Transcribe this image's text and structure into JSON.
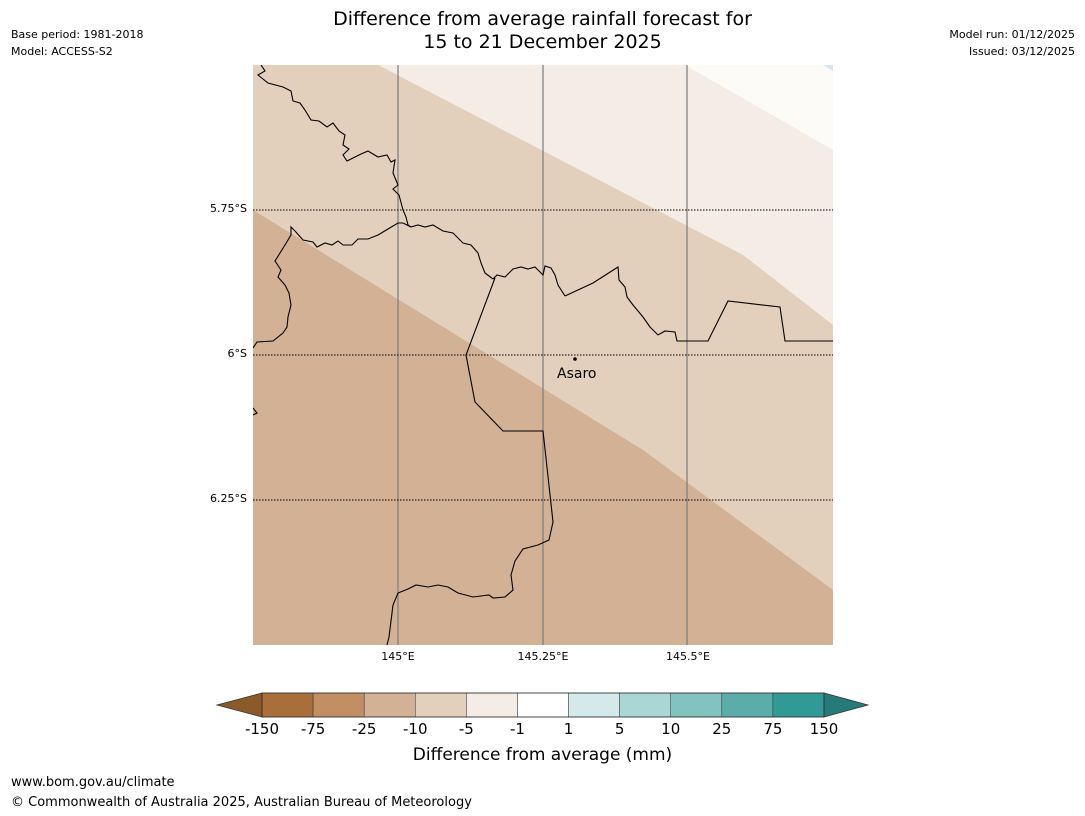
{
  "title": {
    "line1": "Difference from average rainfall forecast for",
    "line2": "15 to 21 December 2025"
  },
  "meta": {
    "base_period": "Base period: 1981-2018",
    "model": "Model: ACCESS-S2",
    "model_run": "Model run: 01/12/2025",
    "issued": "Issued: 03/12/2025"
  },
  "map": {
    "place": "Asaro",
    "lat_labels": [
      "5.75°S",
      "6°S",
      "6.25°S"
    ],
    "lon_labels": [
      "145°E",
      "145.25°E",
      "145.5°E"
    ]
  },
  "legend": {
    "label": "Difference from average (mm)",
    "ticks": [
      "-150",
      "-75",
      "-25",
      "-10",
      "-5",
      "-1",
      "1",
      "5",
      "10",
      "25",
      "75",
      "150"
    ],
    "colors": [
      "#a86f3a",
      "#c18f63",
      "#d2b194",
      "#e2cfbc",
      "#f4ece5",
      "#ffffff",
      "#d4e9e9",
      "#aad6d5",
      "#82c2bf",
      "#5bada9",
      "#329a96",
      "#2a7f7b"
    ],
    "extend_low": "#8b5a2b",
    "extend_high": "#267a77"
  },
  "footer": {
    "url": "www.bom.gov.au/climate",
    "copyright": "© Commonwealth of Australia 2025, Australian Bureau of Meteorology"
  }
}
